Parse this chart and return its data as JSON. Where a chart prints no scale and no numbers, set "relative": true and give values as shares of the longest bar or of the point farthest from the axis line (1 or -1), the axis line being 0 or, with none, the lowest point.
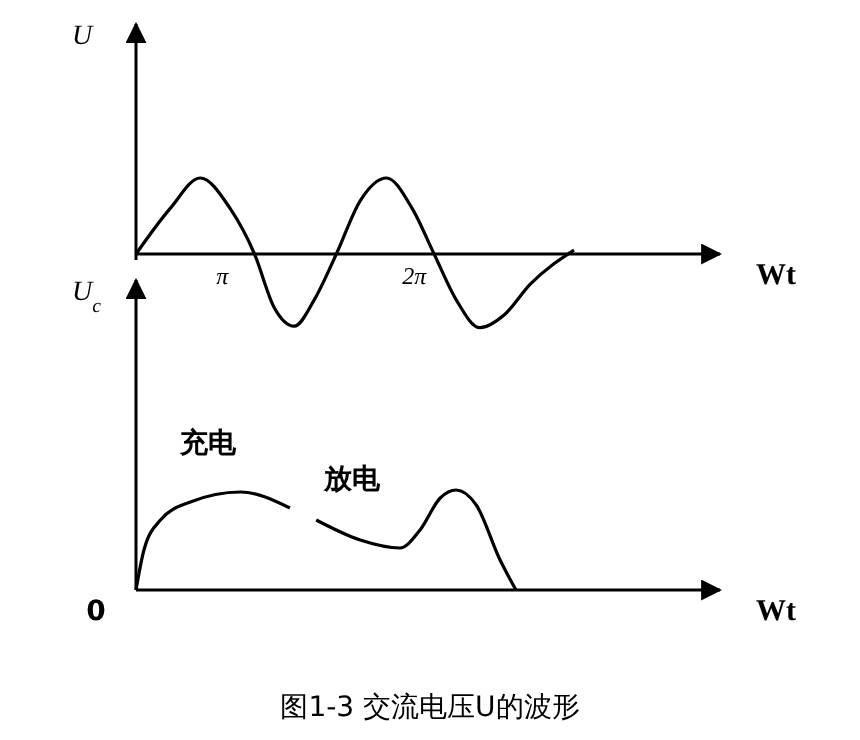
{
  "chart_data": [
    {
      "type": "line",
      "relative": true,
      "xlabel": "Wt",
      "ylabel": "U",
      "color": "#000000",
      "xlim": [
        1.73,
        11.29
      ],
      "xticks": [
        {
          "value": 3.1416,
          "label": "π"
        },
        {
          "value": 6.2832,
          "label": "2π"
        }
      ],
      "x": [
        1.73,
        2.29,
        2.78,
        3.27,
        3.67,
        3.99,
        4.32,
        4.65,
        5.01,
        5.4,
        5.83,
        6.25,
        6.61,
        6.97,
        7.36,
        7.76,
        8.18,
        8.9
      ],
      "values": [
        0,
        0.6,
        1,
        0.6,
        0,
        -0.7,
        -0.95,
        -0.6,
        0,
        0.7,
        1,
        0.6,
        0,
        -0.6,
        -0.97,
        -0.8,
        -0.4,
        0.05
      ]
    },
    {
      "type": "line",
      "relative": true,
      "xlabel": "Wt",
      "ylabel": "U$_{c}$",
      "color": "#000000",
      "xlim": [
        1.73,
        11.29
      ],
      "x": [
        1.73,
        1.86,
        2.13,
        2.62,
        3.44,
        4.25,
        4.5,
        4.68,
        5.4,
        6.05,
        6.38,
        6.71,
        6.97,
        7.3,
        7.69,
        7.95
      ],
      "values": [
        0,
        0.4,
        0.7,
        0.88,
        0.98,
        0.82,
        null,
        0.7,
        0.5,
        0.42,
        0.6,
        0.92,
        1,
        0.85,
        0.3,
        0
      ],
      "annotations": [
        "充电",
        "放电",
        {
          "text": "0",
          "x": 1.73,
          "y": 0
        },
        "图1-3 交流电压U的波形"
      ]
    }
  ]
}
